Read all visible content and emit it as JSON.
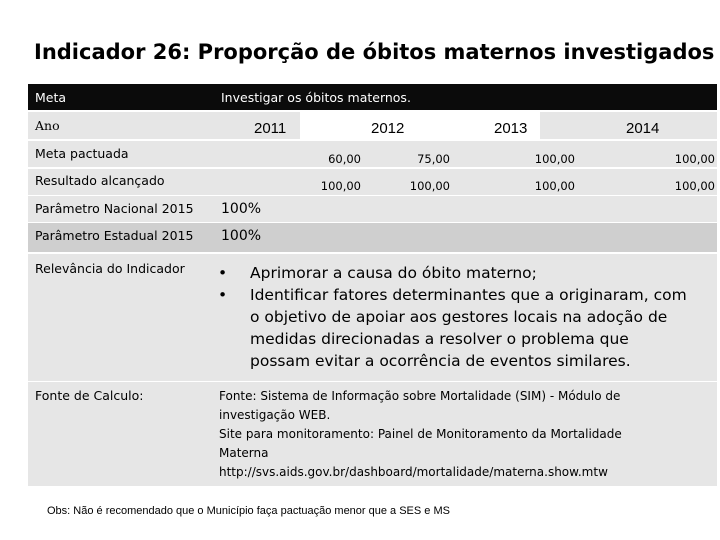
{
  "title": "Indicador 26: Proporção de óbitos maternos investigados",
  "meta": {
    "label": "Meta",
    "value": "Investigar os óbitos maternos."
  },
  "ano": {
    "label": "Ano",
    "years": [
      "2011",
      "2012",
      "2013",
      "2014"
    ]
  },
  "meta_pactuada": {
    "label": "Meta pactuada",
    "values": [
      "60,00",
      "75,00",
      "100,00",
      "100,00"
    ]
  },
  "resultado": {
    "label": "Resultado alcançado",
    "values": [
      "100,00",
      "100,00",
      "100,00",
      "100,00"
    ]
  },
  "parametro_nacional": {
    "label": "Parâmetro Nacional 2015",
    "value": "100%"
  },
  "parametro_estadual": {
    "label": "Parâmetro Estadual 2015",
    "value": "100%"
  },
  "relevancia": {
    "label": "Relevância do Indicador",
    "bullets": [
      [
        "Aprimorar a causa do óbito materno;"
      ],
      [
        "Identificar fatores determinantes que a originaram, com",
        "o objetivo de apoiar aos gestores locais na adoção de",
        "medidas direcionadas a resolver o problema que",
        "possam evitar a ocorrência de eventos similares."
      ]
    ]
  },
  "fonte": {
    "label": "Fonte de Calculo:",
    "lines": [
      "Fonte: Sistema de Informação sobre Mortalidade (SIM) - Módulo de",
      "investigação WEB.",
      "Site para monitoramento: Painel de Monitoramento da Mortalidade",
      "Materna",
      "http://svs.aids.gov.br/dashboard/mortalidade/materna.show.mtw"
    ]
  },
  "obs": "Obs: Não é recomendado que o Município faça pactuação menor que a SES e MS"
}
